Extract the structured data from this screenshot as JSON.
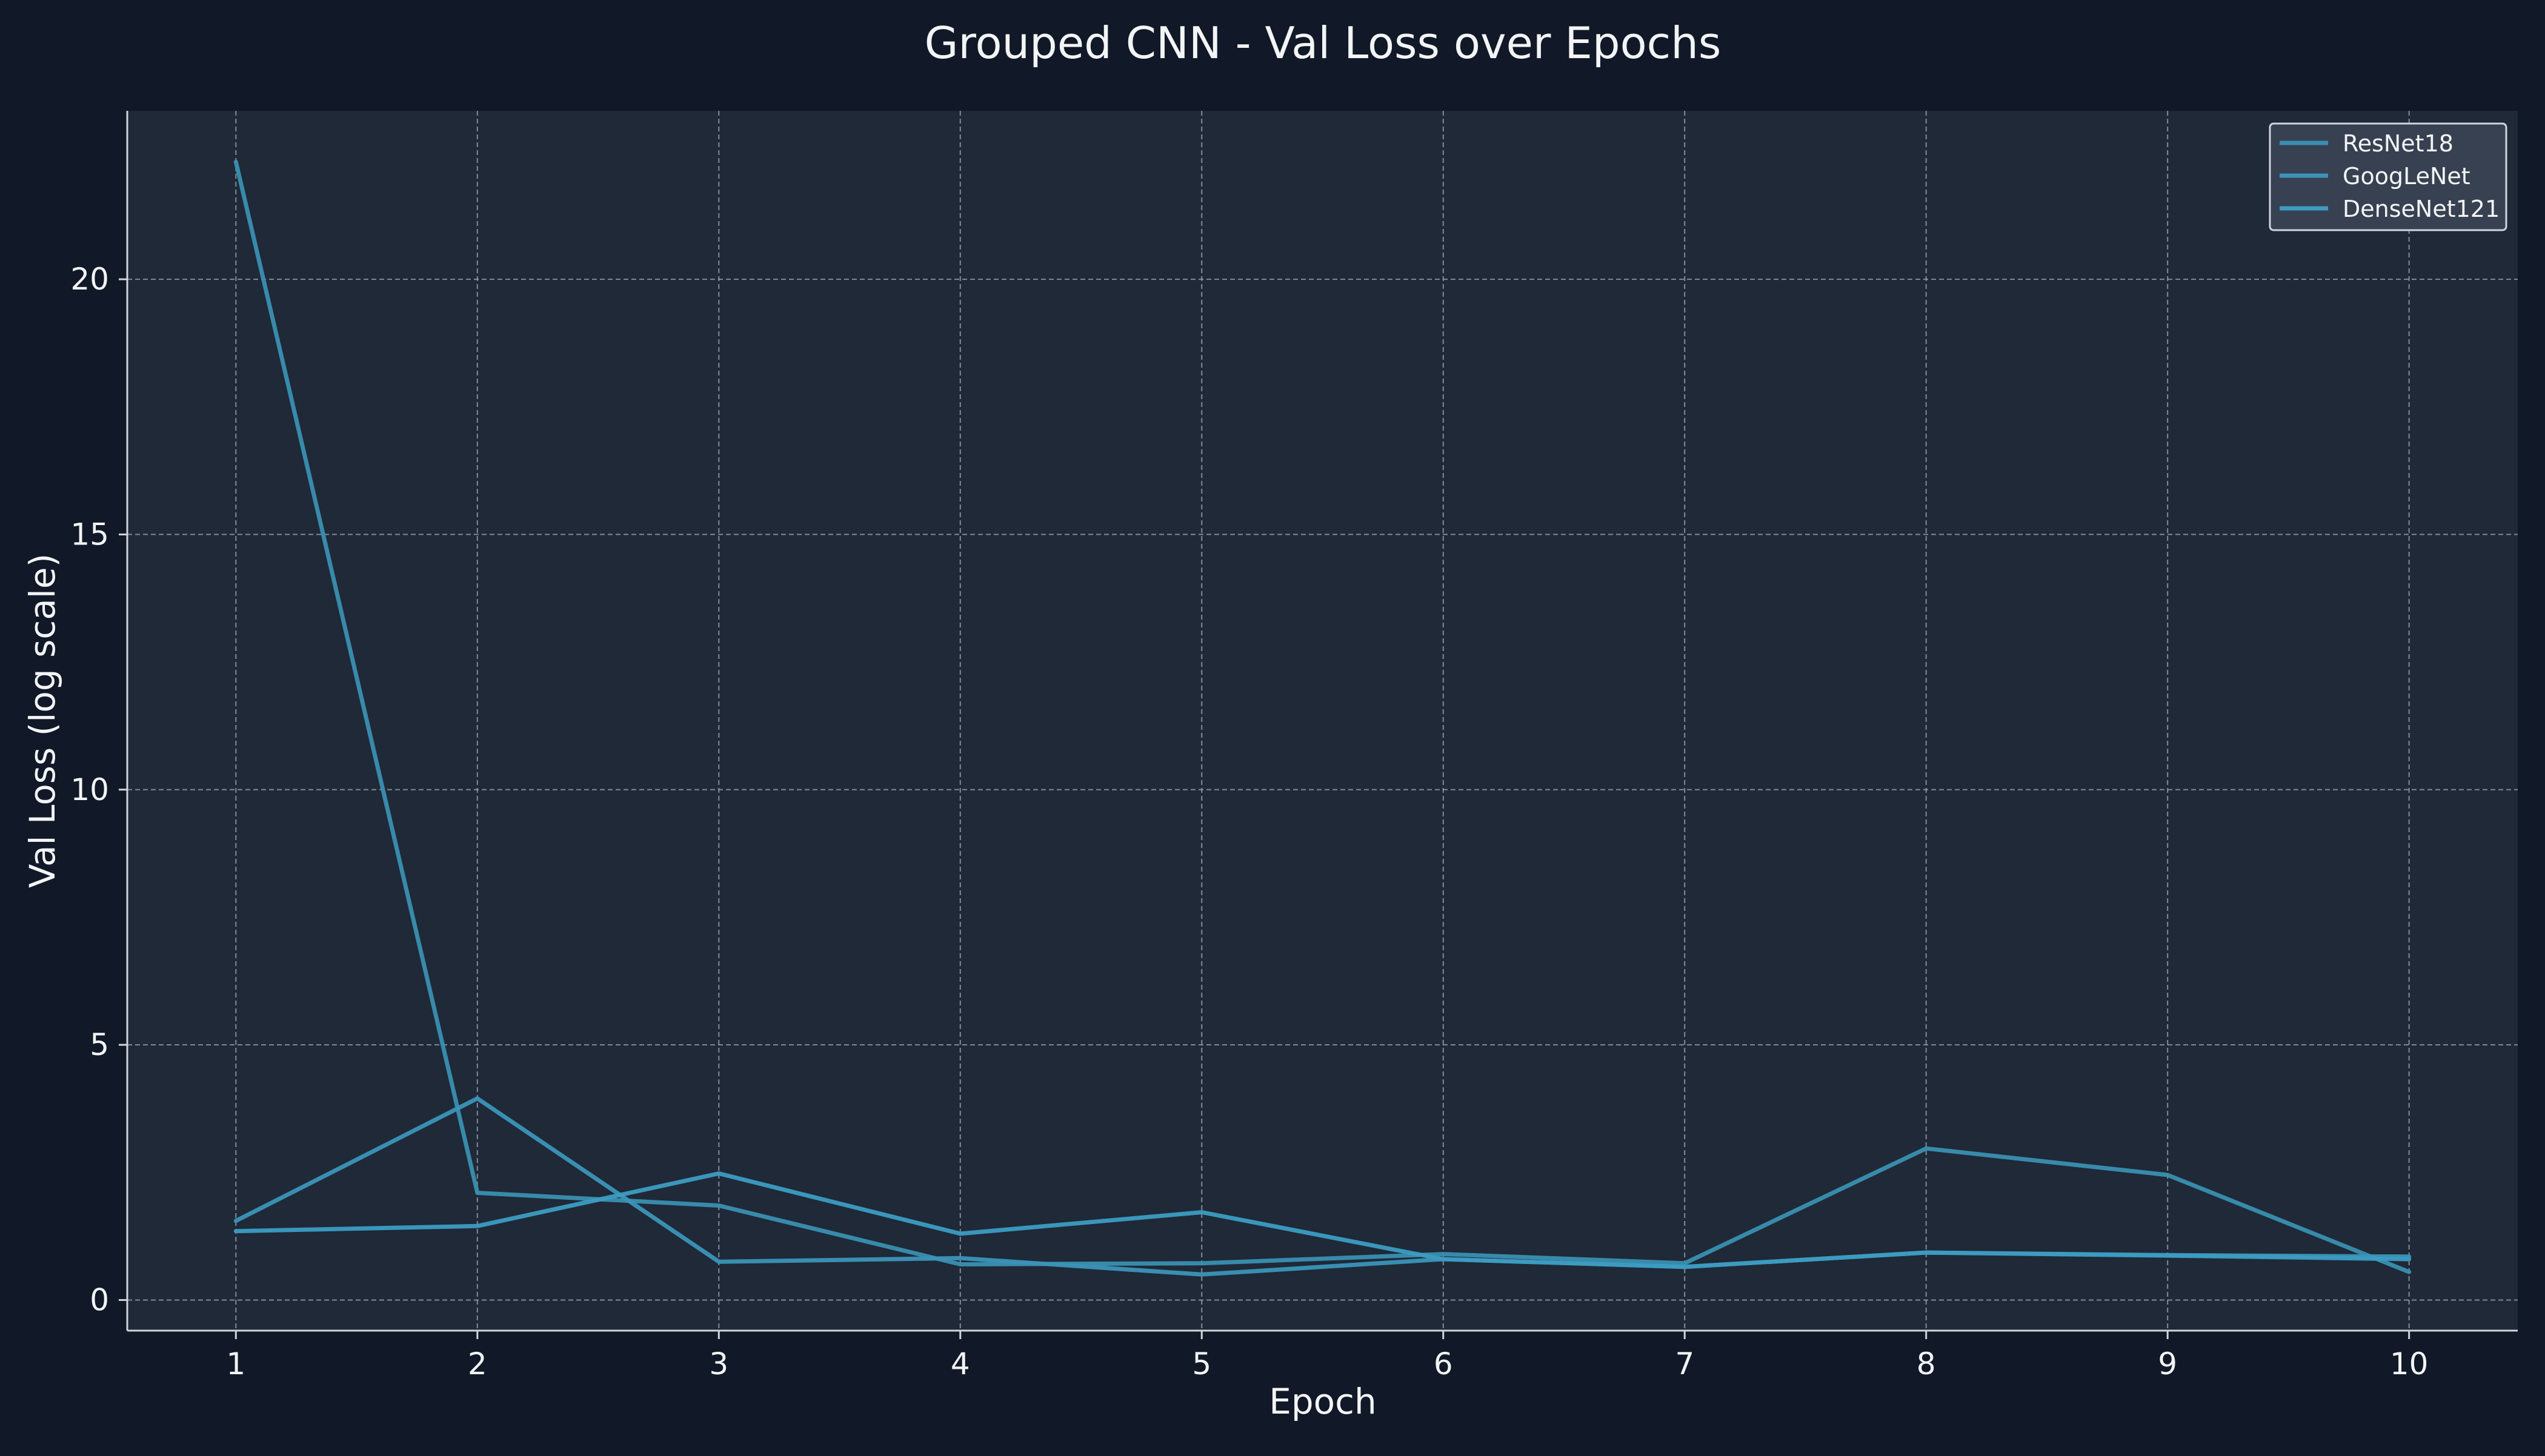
{
  "chart_data": {
    "type": "line",
    "title": "Grouped CNN - Val Loss over Epochs",
    "xlabel": "Epoch",
    "ylabel": "Val Loss (log scale)",
    "x": [
      1,
      2,
      3,
      4,
      5,
      6,
      7,
      8,
      9,
      10
    ],
    "xlim": [
      0.55,
      10.45
    ],
    "ylim": [
      -0.6,
      23.3
    ],
    "yticks": [
      0,
      5,
      10,
      15,
      20
    ],
    "grid": true,
    "legend_position": "top-right",
    "series": [
      {
        "name": "ResNet18",
        "color": "#3a8fb0",
        "values": [
          22.3,
          2.1,
          1.85,
          0.7,
          0.72,
          0.9,
          0.72,
          2.97,
          2.45,
          0.55
        ]
      },
      {
        "name": "GoogLeNet",
        "color": "#3b94b8",
        "values": [
          1.55,
          3.95,
          0.75,
          0.82,
          0.5,
          0.8,
          0.65,
          0.93,
          0.88,
          0.85
        ]
      },
      {
        "name": "DenseNet121",
        "color": "#3c9cc2",
        "values": [
          1.35,
          1.45,
          2.48,
          1.3,
          1.72,
          0.8,
          0.65,
          0.93,
          0.87,
          0.8
        ]
      }
    ]
  },
  "colors": {
    "background": "#111827",
    "plot_background": "#1f2937",
    "grid": "#9ca3af",
    "text": "#f3f4f6",
    "legend_background": "#374151"
  }
}
